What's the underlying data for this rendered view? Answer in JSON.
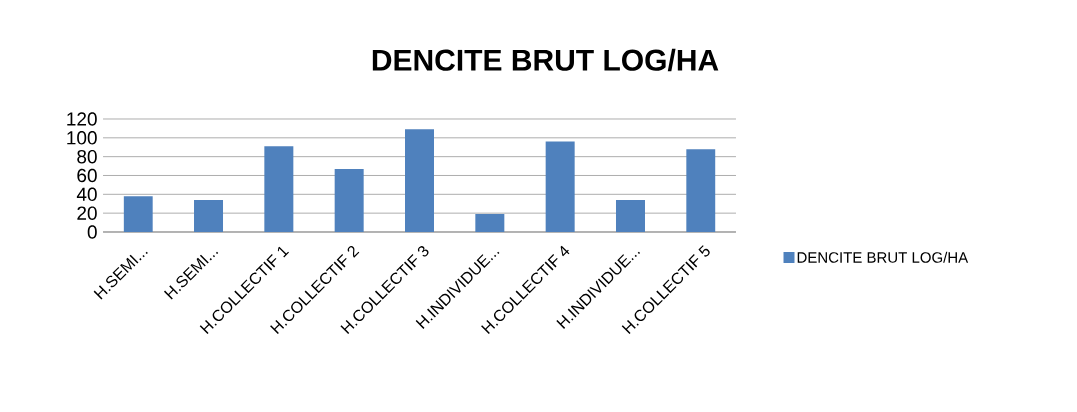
{
  "chart_data": {
    "type": "bar",
    "title": "DENCITE BRUT LOG/HA",
    "categories": [
      "H.SEMI...",
      "H.SEMI...",
      "H.COLLECTIF 1",
      "H.COLLECTIF 2",
      "H.COLLECTIF 3",
      "H.INDIVIDUE...",
      "H.COLLECTIF 4",
      "H.INDIVIDUE...",
      "H.COLLECTIF 5"
    ],
    "series": [
      {
        "name": "DENCITE BRUT LOG/HA",
        "color": "#4f81bd",
        "values": [
          38,
          34,
          91,
          67,
          109,
          19,
          96,
          34,
          88
        ]
      }
    ],
    "ylim": [
      0,
      120
    ],
    "yticks": [
      0,
      20,
      40,
      60,
      80,
      100,
      120
    ],
    "grid": "y",
    "legend": "right"
  }
}
